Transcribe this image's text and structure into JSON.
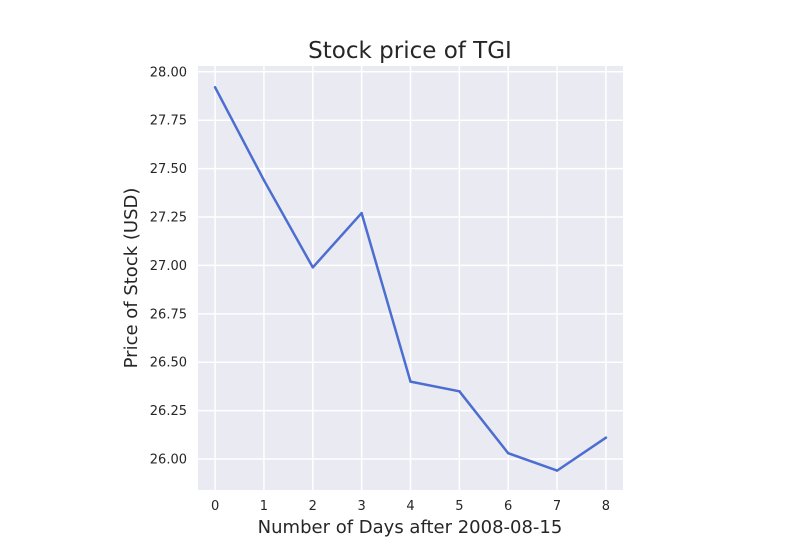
{
  "chart_data": {
    "type": "line",
    "title": "Stock price of TGI",
    "xlabel": "Number of Days after 2008-08-15",
    "ylabel": "Price of Stock (USD)",
    "x": [
      0,
      1,
      2,
      3,
      4,
      5,
      6,
      7,
      8
    ],
    "series": [
      {
        "values": [
          27.92,
          27.44,
          26.99,
          27.27,
          26.4,
          26.35,
          26.03,
          25.94,
          26.11
        ]
      }
    ],
    "xlim": [
      -0.35,
      8.35
    ],
    "ylim": [
      25.84,
      28.03
    ],
    "xticks": [
      "0",
      "1",
      "2",
      "3",
      "4",
      "5",
      "6",
      "7",
      "8"
    ],
    "yticks": [
      "26.00",
      "26.25",
      "26.50",
      "26.75",
      "27.00",
      "27.25",
      "27.50",
      "27.75",
      "28.00"
    ],
    "grid": true,
    "legend": "none",
    "colors": {
      "line": "#4c6ed0",
      "plot_background": "#eaeaf2",
      "grid": "#ffffff",
      "text": "#262626"
    }
  }
}
